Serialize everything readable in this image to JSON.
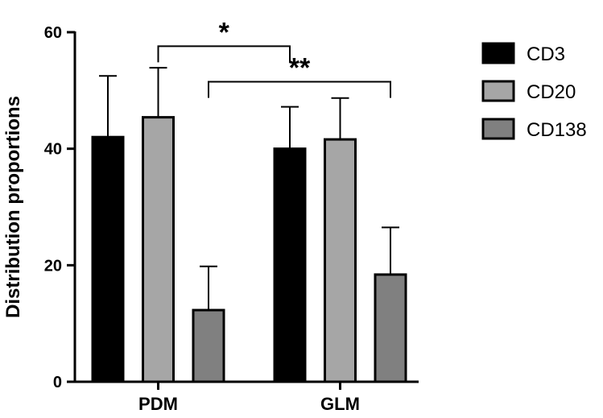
{
  "chart_data": {
    "type": "bar",
    "categories": [
      "PDM",
      "GLM"
    ],
    "series": [
      {
        "name": "CD3",
        "values": [
          42,
          40
        ],
        "errors": [
          10.5,
          7.2
        ],
        "color": "#000000"
      },
      {
        "name": "CD20",
        "values": [
          45.4,
          41.6
        ],
        "errors": [
          8.5,
          7.1
        ],
        "color": "#a6a6a6"
      },
      {
        "name": "CD138",
        "values": [
          12.3,
          18.4
        ],
        "errors": [
          7.5,
          8.1
        ],
        "color": "#808080"
      }
    ],
    "title": "",
    "xlabel": "",
    "ylabel": "Distribution proportions",
    "ylim": [
      0,
      60
    ],
    "yticks": [
      0,
      20,
      40,
      60
    ],
    "legend_position": "right",
    "grid": false,
    "annotations": [
      {
        "label": "*",
        "from": {
          "category": "PDM",
          "series": "CD20"
        },
        "to": {
          "category": "GLM",
          "series": "CD3"
        },
        "y": 57.6
      },
      {
        "label": "**",
        "from": {
          "category": "PDM",
          "series": "CD138"
        },
        "to": {
          "category": "GLM",
          "series": "CD138"
        },
        "y": 51.5
      }
    ]
  }
}
